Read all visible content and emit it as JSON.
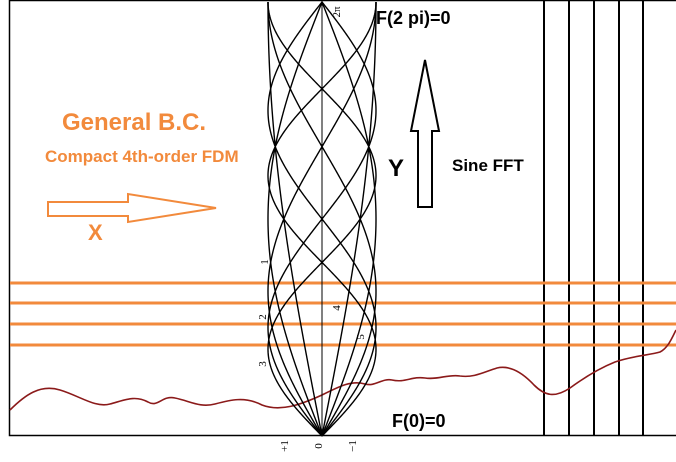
{
  "labels": {
    "title_line1": "General  B.C.",
    "title_line2": "Compact 4th-order FDM",
    "x_axis": "X",
    "y_axis": "Y",
    "method": "Sine FFT",
    "top_bc": "F(2 pi)=0",
    "bottom_bc": "F(0)=0"
  },
  "mode_labels": [
    "1",
    "2",
    "3",
    "4",
    "5"
  ],
  "two_pi_label": "2π",
  "tick_labels": [
    "+1",
    "0",
    "−1"
  ],
  "colors": {
    "orange": "#f28a3c",
    "wave": "#8b1a1a",
    "ink": "#000000"
  },
  "modes": [
    1,
    2,
    3,
    4,
    5
  ]
}
